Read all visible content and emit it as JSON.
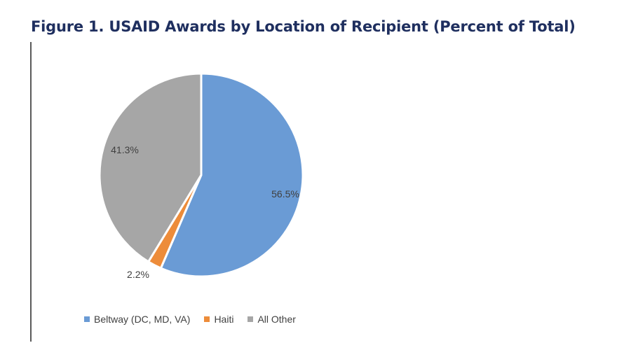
{
  "title": "Figure 1. USAID Awards by Location of Recipient (Percent of Total)",
  "chart_data": {
    "type": "pie",
    "title": "Figure 1. USAID Awards by Location of Recipient (Percent of Total)",
    "categories": [
      "Beltway (DC, MD, VA)",
      "Haiti",
      "All Other"
    ],
    "values": [
      56.5,
      2.2,
      41.3
    ],
    "labels": [
      "56.5%",
      "2.2%",
      "41.3%"
    ],
    "colors": [
      "#6a9bd5",
      "#ed8c3a",
      "#a6a6a6"
    ],
    "unit": "percent",
    "legend_position": "bottom",
    "start_angle": "12 o'clock",
    "direction": "clockwise"
  }
}
